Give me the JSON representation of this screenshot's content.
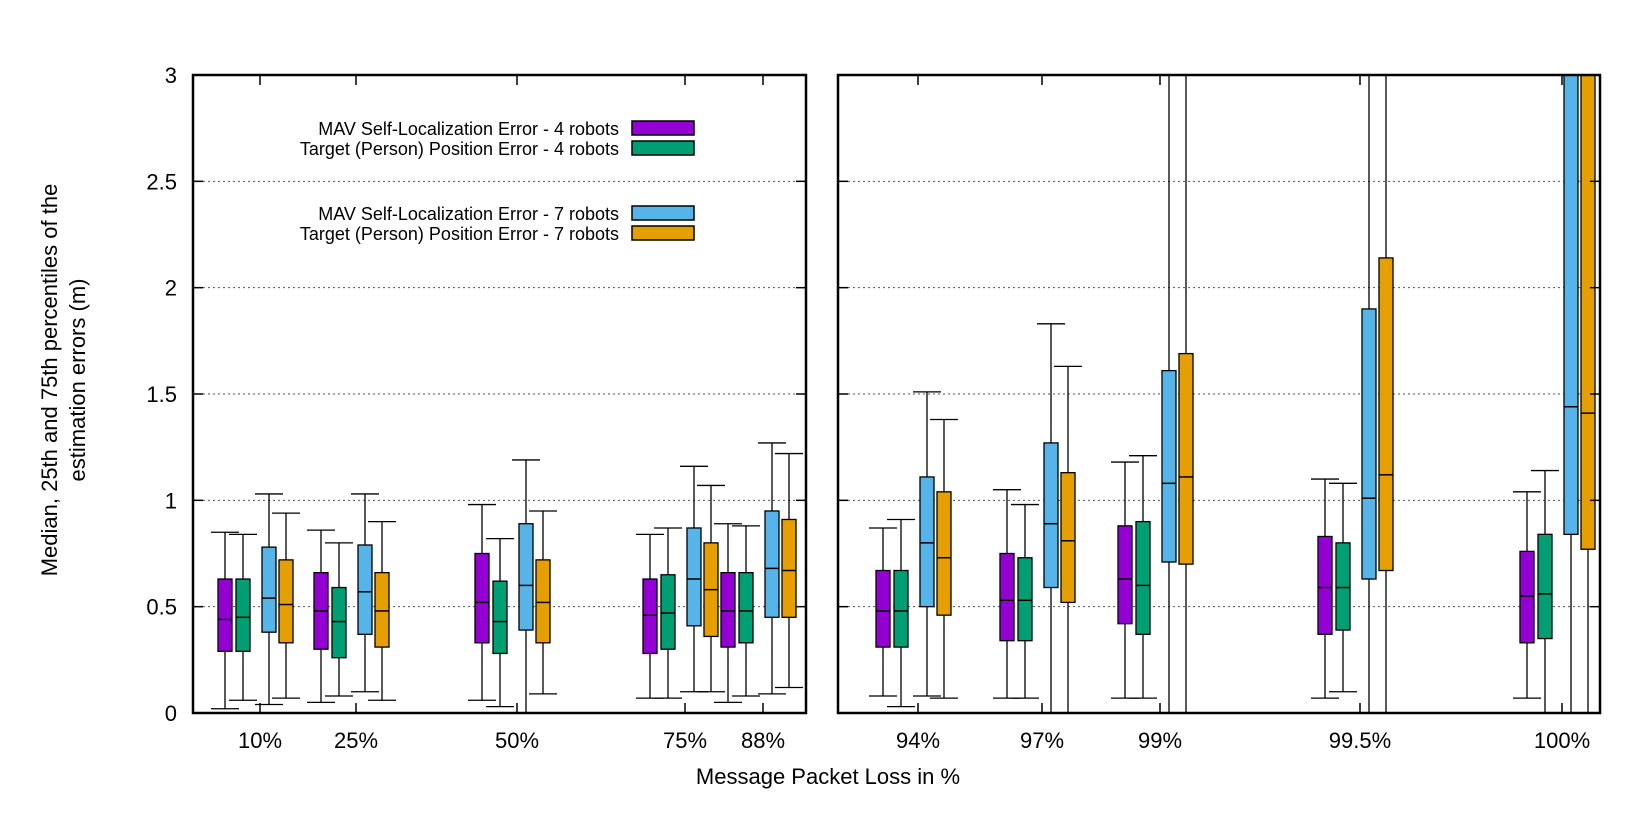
{
  "chart_data": {
    "type": "box",
    "ylabel_line1": "Median, 25th and 75th percentiles of the",
    "ylabel_line2": "estimation errors (m)",
    "xlabel": "Message Packet Loss in %",
    "ylim": [
      0,
      3
    ],
    "yticks": [
      "0",
      "0.5",
      "1",
      "1.5",
      "2",
      "2.5",
      "3"
    ],
    "grid": "horizontal-dotted",
    "legend_position": "top-left",
    "series": [
      {
        "name": "MAV Self-Localization Error - 4 robots",
        "color": "#9400D3"
      },
      {
        "name": "Target (Person) Position Error - 4 robots",
        "color": "#009E73"
      },
      {
        "name": "MAV Self-Localization Error - 7 robots",
        "color": "#56B4E9"
      },
      {
        "name": "Target (Person) Position Error - 7 robots",
        "color": "#E69F00"
      }
    ],
    "panels": [
      {
        "categories": [
          "10%",
          "25%",
          "50%",
          "75%",
          "88%"
        ],
        "boxes": [
          [
            {
              "min": 0.02,
              "q1": 0.29,
              "median": 0.44,
              "q3": 0.63,
              "max": 0.85
            },
            {
              "min": 0.06,
              "q1": 0.29,
              "median": 0.45,
              "q3": 0.63,
              "max": 0.84
            },
            {
              "min": 0.04,
              "q1": 0.38,
              "median": 0.54,
              "q3": 0.78,
              "max": 1.03
            },
            {
              "min": 0.07,
              "q1": 0.33,
              "median": 0.51,
              "q3": 0.72,
              "max": 0.94
            }
          ],
          [
            {
              "min": 0.05,
              "q1": 0.3,
              "median": 0.48,
              "q3": 0.66,
              "max": 0.86
            },
            {
              "min": 0.08,
              "q1": 0.26,
              "median": 0.43,
              "q3": 0.59,
              "max": 0.8
            },
            {
              "min": 0.1,
              "q1": 0.37,
              "median": 0.57,
              "q3": 0.79,
              "max": 1.03
            },
            {
              "min": 0.06,
              "q1": 0.31,
              "median": 0.48,
              "q3": 0.66,
              "max": 0.9
            }
          ],
          [
            {
              "min": 0.06,
              "q1": 0.33,
              "median": 0.52,
              "q3": 0.75,
              "max": 0.98
            },
            {
              "min": 0.03,
              "q1": 0.28,
              "median": 0.43,
              "q3": 0.62,
              "max": 0.82
            },
            {
              "min": 0.0,
              "q1": 0.39,
              "median": 0.6,
              "q3": 0.89,
              "max": 1.19
            },
            {
              "min": 0.09,
              "q1": 0.33,
              "median": 0.52,
              "q3": 0.72,
              "max": 0.95
            }
          ],
          [
            {
              "min": 0.07,
              "q1": 0.28,
              "median": 0.46,
              "q3": 0.63,
              "max": 0.84
            },
            {
              "min": 0.07,
              "q1": 0.3,
              "median": 0.47,
              "q3": 0.65,
              "max": 0.87
            },
            {
              "min": 0.1,
              "q1": 0.41,
              "median": 0.63,
              "q3": 0.87,
              "max": 1.16
            },
            {
              "min": 0.1,
              "q1": 0.36,
              "median": 0.58,
              "q3": 0.8,
              "max": 1.07
            }
          ],
          [
            {
              "min": 0.05,
              "q1": 0.31,
              "median": 0.48,
              "q3": 0.66,
              "max": 0.89
            },
            {
              "min": 0.08,
              "q1": 0.33,
              "median": 0.48,
              "q3": 0.66,
              "max": 0.88
            },
            {
              "min": 0.09,
              "q1": 0.45,
              "median": 0.68,
              "q3": 0.95,
              "max": 1.27
            },
            {
              "min": 0.12,
              "q1": 0.45,
              "median": 0.67,
              "q3": 0.91,
              "max": 1.22
            }
          ]
        ]
      },
      {
        "categories": [
          "94%",
          "97%",
          "99%",
          "99.5%",
          "100%"
        ],
        "boxes": [
          [
            {
              "min": 0.08,
              "q1": 0.31,
              "median": 0.48,
              "q3": 0.67,
              "max": 0.87
            },
            {
              "min": 0.03,
              "q1": 0.31,
              "median": 0.48,
              "q3": 0.67,
              "max": 0.91
            },
            {
              "min": 0.08,
              "q1": 0.5,
              "median": 0.8,
              "q3": 1.11,
              "max": 1.51
            },
            {
              "min": 0.07,
              "q1": 0.46,
              "median": 0.73,
              "q3": 1.04,
              "max": 1.38
            }
          ],
          [
            {
              "min": 0.07,
              "q1": 0.34,
              "median": 0.53,
              "q3": 0.75,
              "max": 1.05
            },
            {
              "min": 0.07,
              "q1": 0.34,
              "median": 0.53,
              "q3": 0.73,
              "max": 0.98
            },
            {
              "min": 0.0,
              "q1": 0.59,
              "median": 0.89,
              "q3": 1.27,
              "max": 1.83
            },
            {
              "min": 0.0,
              "q1": 0.52,
              "median": 0.81,
              "q3": 1.13,
              "max": 1.63
            }
          ],
          [
            {
              "min": 0.07,
              "q1": 0.42,
              "median": 0.63,
              "q3": 0.88,
              "max": 1.18
            },
            {
              "min": 0.07,
              "q1": 0.37,
              "median": 0.6,
              "q3": 0.9,
              "max": 1.21
            },
            {
              "min": 0.0,
              "q1": 0.71,
              "median": 1.08,
              "q3": 1.61,
              "max": 3.0
            },
            {
              "min": 0.0,
              "q1": 0.7,
              "median": 1.11,
              "q3": 1.69,
              "max": 3.0
            }
          ],
          [
            {
              "min": 0.07,
              "q1": 0.37,
              "median": 0.59,
              "q3": 0.83,
              "max": 1.1
            },
            {
              "min": 0.1,
              "q1": 0.39,
              "median": 0.59,
              "q3": 0.8,
              "max": 1.08
            },
            {
              "min": 0.0,
              "q1": 0.63,
              "median": 1.01,
              "q3": 1.9,
              "max": 3.0
            },
            {
              "min": 0.0,
              "q1": 0.67,
              "median": 1.12,
              "q3": 2.14,
              "max": 3.0
            }
          ],
          [
            {
              "min": 0.07,
              "q1": 0.33,
              "median": 0.55,
              "q3": 0.76,
              "max": 1.04
            },
            {
              "min": 0.0,
              "q1": 0.35,
              "median": 0.56,
              "q3": 0.84,
              "max": 1.14
            },
            {
              "min": 0.0,
              "q1": 0.84,
              "median": 1.44,
              "q3": 3.0,
              "max": 3.0
            },
            {
              "min": 0.0,
              "q1": 0.77,
              "median": 1.41,
              "q3": 3.0,
              "max": 3.0
            }
          ]
        ]
      }
    ]
  }
}
